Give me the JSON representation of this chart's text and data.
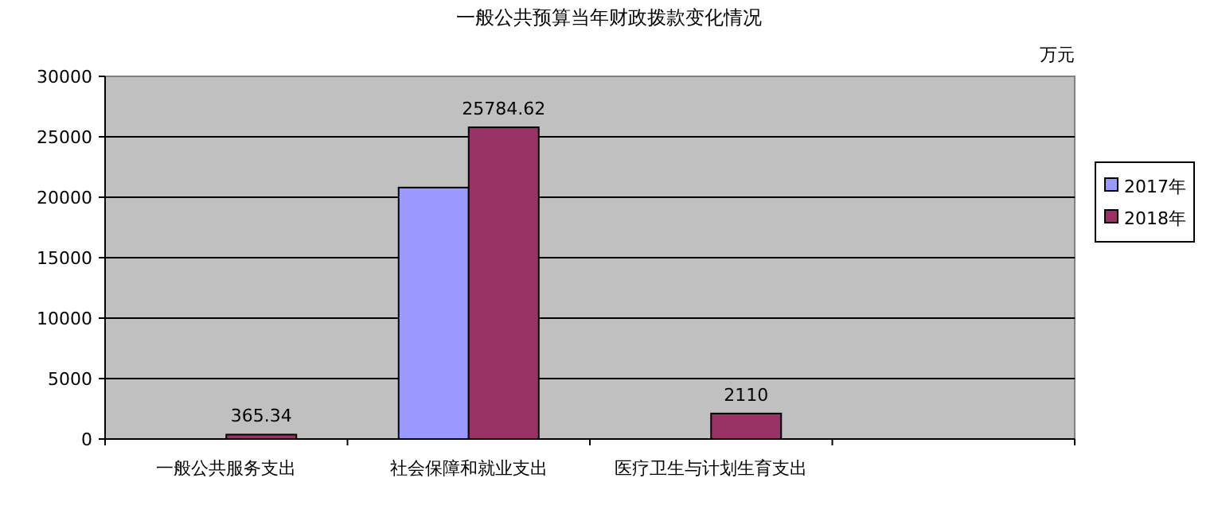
{
  "chart_data": {
    "type": "bar",
    "title": "一般公共预算当年财政拨款变化情况",
    "ylabel": "万元",
    "categories": [
      "一般公共服务支出",
      "社会保障和就业支出",
      "医疗卫生与计划生育支出",
      null
    ],
    "series": [
      {
        "name": "2017年",
        "color": "#9999ff",
        "values": [
          null,
          20800,
          null,
          null
        ]
      },
      {
        "name": "2018年",
        "color": "#993366",
        "values": [
          365.34,
          25784.62,
          2110,
          null
        ],
        "value_labels": [
          "365.34",
          "25784.62",
          "2110",
          null
        ]
      }
    ],
    "ylim": [
      0,
      30000
    ],
    "yticks": [
      0,
      5000,
      10000,
      15000,
      20000,
      25000,
      30000
    ],
    "grid": "y",
    "legend": "right"
  }
}
